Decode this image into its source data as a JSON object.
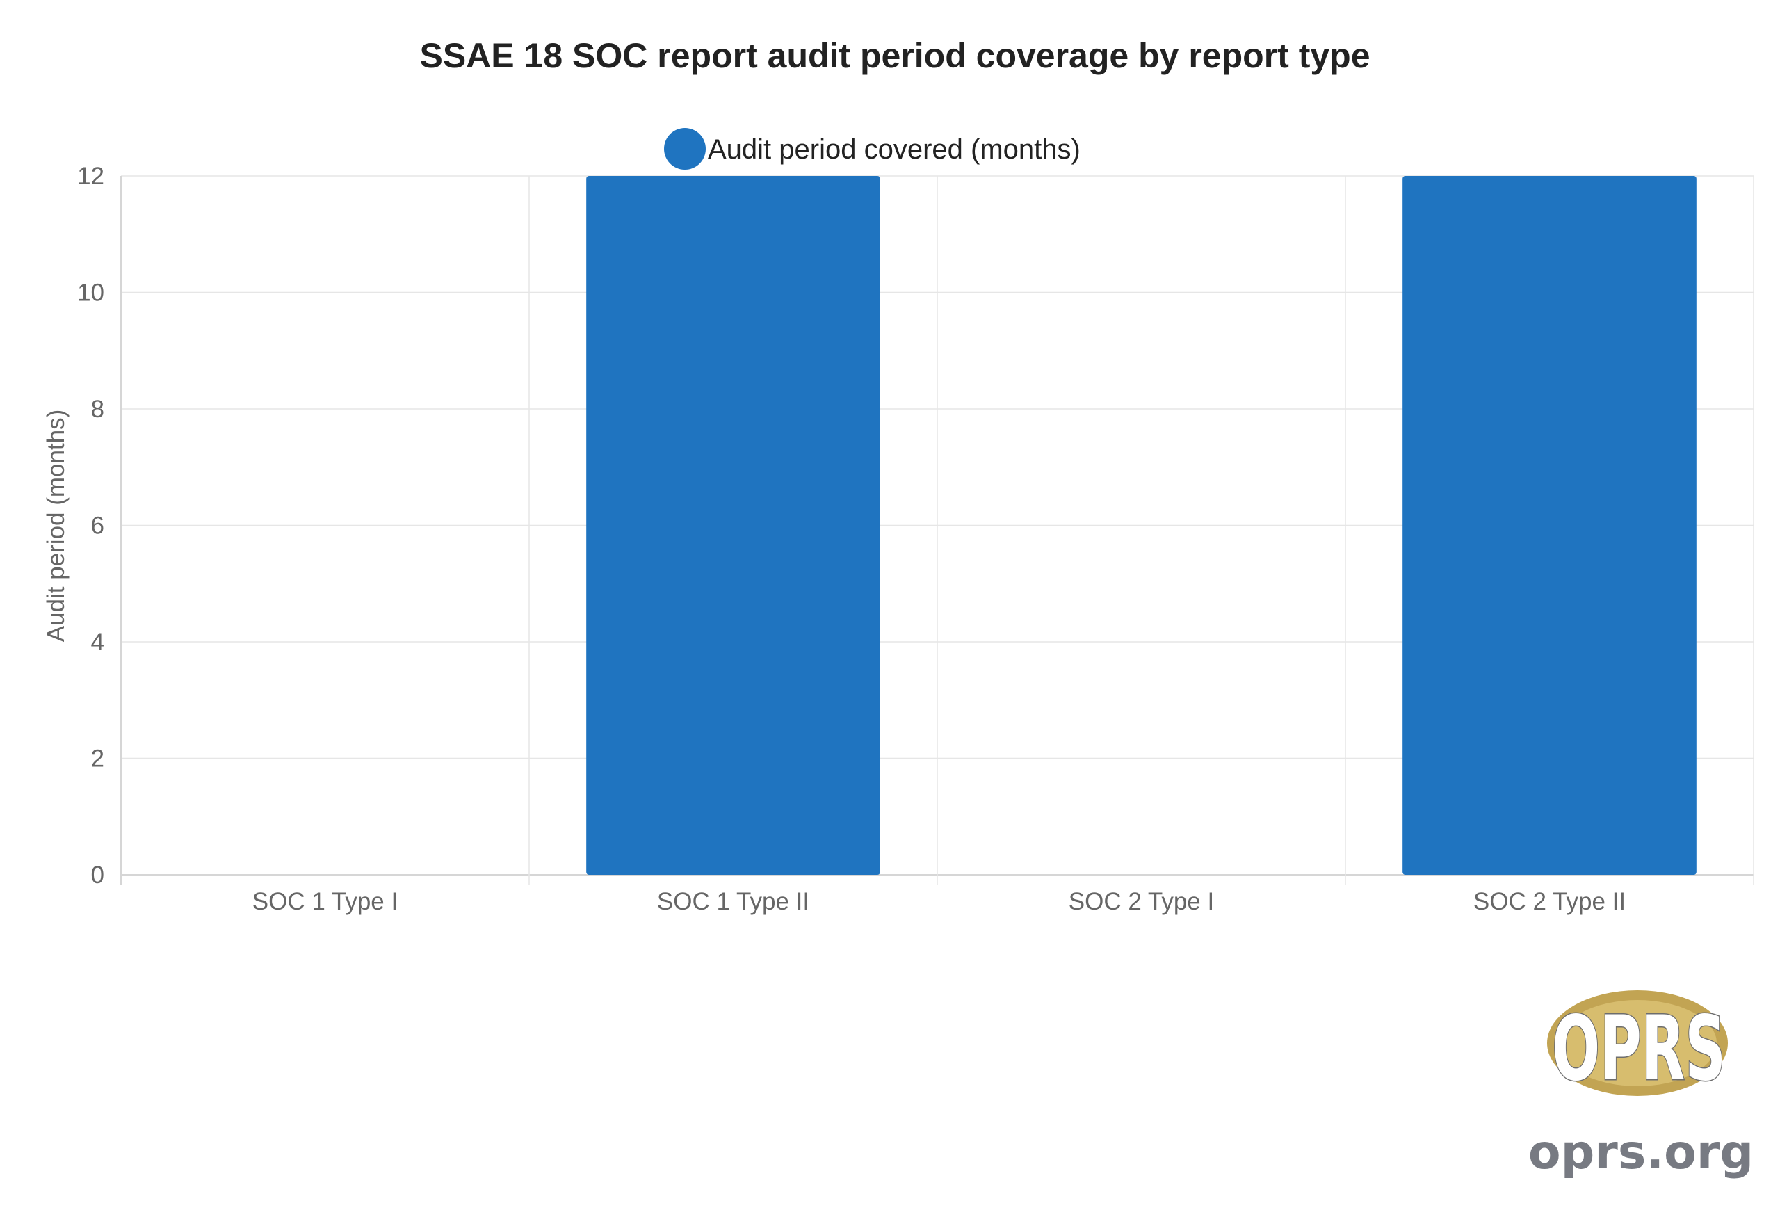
{
  "chart_data": {
    "type": "bar",
    "title": "SSAE 18 SOC report audit period coverage by report type",
    "categories": [
      "SOC 1 Type I",
      "SOC 1 Type II",
      "SOC 2 Type I",
      "SOC 2 Type II"
    ],
    "series": [
      {
        "name": "Audit period covered (months)",
        "values": [
          0,
          12,
          0,
          12
        ],
        "color": "#1f74c0"
      }
    ],
    "xlabel": "",
    "ylabel": "Audit period (months)",
    "ylim": [
      0,
      12
    ],
    "yticks": [
      0,
      2,
      4,
      6,
      8,
      10,
      12
    ],
    "grid": true,
    "legend": "top-center"
  },
  "watermark": {
    "logo_text": "OPRS",
    "site": "oprs.org"
  }
}
